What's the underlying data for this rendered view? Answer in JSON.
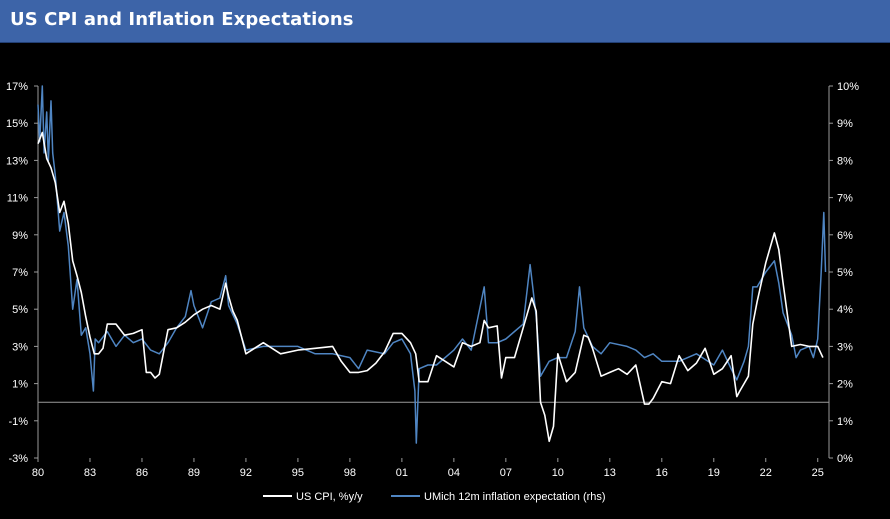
{
  "title": "US CPI and Inflation Expectations",
  "colors": {
    "background": "#000000",
    "title_bar": "#3d64a8",
    "cpi": "#ffffff",
    "umich": "#4f85c2"
  },
  "chart_data": {
    "type": "line",
    "title": "US CPI and Inflation Expectations",
    "x_tick_labels": [
      "80",
      "83",
      "86",
      "89",
      "92",
      "95",
      "98",
      "01",
      "04",
      "07",
      "10",
      "13",
      "16",
      "19",
      "22",
      "25"
    ],
    "y_left": {
      "ticks": [
        "17%",
        "15%",
        "13%",
        "11%",
        "9%",
        "7%",
        "5%",
        "3%",
        "1%",
        "-1%",
        "-3%"
      ],
      "lim": [
        -3,
        17
      ]
    },
    "y_right": {
      "ticks": [
        "10%",
        "9%",
        "8%",
        "7%",
        "6%",
        "5%",
        "4%",
        "3%",
        "2%",
        "1%",
        "0%"
      ],
      "lim": [
        0,
        10
      ]
    },
    "legend_position": "bottom",
    "series": [
      {
        "name": "US CPI, %y/y",
        "axis": "left",
        "x": [
          1980.0,
          1980.25,
          1980.5,
          1980.75,
          1981.0,
          1981.25,
          1981.5,
          1981.75,
          1982.0,
          1982.25,
          1982.5,
          1982.75,
          1983.0,
          1983.25,
          1983.5,
          1983.75,
          1984.0,
          1984.5,
          1985.0,
          1985.5,
          1986.0,
          1986.25,
          1986.5,
          1986.75,
          1987.0,
          1987.5,
          1988.0,
          1988.5,
          1989.0,
          1989.5,
          1990.0,
          1990.5,
          1990.83,
          1991.0,
          1991.25,
          1991.5,
          1992.0,
          1993.0,
          1994.0,
          1995.0,
          1996.0,
          1997.0,
          1997.5,
          1998.0,
          1998.5,
          1999.0,
          1999.5,
          2000.0,
          2000.5,
          2001.0,
          2001.5,
          2001.8,
          2002.0,
          2002.5,
          2003.0,
          2003.5,
          2004.0,
          2004.5,
          2005.0,
          2005.5,
          2005.75,
          2006.0,
          2006.5,
          2006.75,
          2007.0,
          2007.5,
          2008.0,
          2008.5,
          2008.75,
          2009.0,
          2009.25,
          2009.5,
          2009.75,
          2010.0,
          2010.5,
          2011.0,
          2011.5,
          2011.75,
          2012.0,
          2012.5,
          2013.0,
          2013.5,
          2014.0,
          2014.5,
          2015.0,
          2015.25,
          2015.5,
          2016.0,
          2016.5,
          2017.0,
          2017.5,
          2018.0,
          2018.5,
          2019.0,
          2019.5,
          2020.0,
          2020.33,
          2020.5,
          2021.0,
          2021.25,
          2021.5,
          2022.0,
          2022.5,
          2022.75,
          2023.0,
          2023.5,
          2024.0,
          2024.5,
          2025.0,
          2025.3
        ],
        "values": [
          13.9,
          14.5,
          13.1,
          12.6,
          11.8,
          10.2,
          10.8,
          9.6,
          7.6,
          6.8,
          5.9,
          4.6,
          3.5,
          2.6,
          2.6,
          2.9,
          4.2,
          4.2,
          3.6,
          3.7,
          3.9,
          1.6,
          1.6,
          1.3,
          1.5,
          3.9,
          4.0,
          4.3,
          4.7,
          5.0,
          5.2,
          5.0,
          6.4,
          5.7,
          4.9,
          4.4,
          2.6,
          3.2,
          2.6,
          2.8,
          2.9,
          3.0,
          2.2,
          1.6,
          1.6,
          1.7,
          2.1,
          2.7,
          3.7,
          3.7,
          3.2,
          2.6,
          1.1,
          1.1,
          2.5,
          2.2,
          1.9,
          3.2,
          3.0,
          3.2,
          4.4,
          4.0,
          4.1,
          1.3,
          2.4,
          2.4,
          4.0,
          5.6,
          4.9,
          0.0,
          -0.7,
          -2.1,
          -1.3,
          2.6,
          1.1,
          1.6,
          3.6,
          3.5,
          2.9,
          1.4,
          1.6,
          1.8,
          1.5,
          2.0,
          -0.1,
          -0.1,
          0.2,
          1.1,
          1.0,
          2.5,
          1.7,
          2.1,
          2.9,
          1.5,
          1.8,
          2.5,
          0.3,
          0.6,
          1.4,
          4.2,
          5.4,
          7.5,
          9.1,
          8.2,
          6.4,
          3.0,
          3.1,
          3.0,
          3.0,
          2.4
        ]
      },
      {
        "name": "UMich 12m inflation expectation (rhs)",
        "axis": "right",
        "x": [
          1980.0,
          1980.1,
          1980.25,
          1980.35,
          1980.5,
          1980.6,
          1980.75,
          1980.85,
          1981.0,
          1981.25,
          1981.5,
          1981.75,
          1982.0,
          1982.25,
          1982.5,
          1982.75,
          1983.0,
          1983.2,
          1983.3,
          1983.5,
          1984.0,
          1984.5,
          1985.0,
          1985.5,
          1986.0,
          1986.5,
          1987.0,
          1987.5,
          1988.0,
          1988.5,
          1988.83,
          1989.0,
          1989.5,
          1990.0,
          1990.5,
          1990.83,
          1991.0,
          1991.5,
          1992.0,
          1993.0,
          1994.0,
          1995.0,
          1996.0,
          1997.0,
          1998.0,
          1998.5,
          1999.0,
          2000.0,
          2000.5,
          2001.0,
          2001.5,
          2001.75,
          2001.83,
          2002.0,
          2002.5,
          2003.0,
          2004.0,
          2004.5,
          2005.0,
          2005.75,
          2006.0,
          2006.5,
          2007.0,
          2007.5,
          2008.0,
          2008.4,
          2008.75,
          2009.0,
          2009.5,
          2010.0,
          2010.5,
          2011.0,
          2011.25,
          2011.5,
          2012.0,
          2012.5,
          2013.0,
          2014.0,
          2014.5,
          2015.0,
          2015.5,
          2016.0,
          2017.0,
          2018.0,
          2019.0,
          2019.5,
          2020.0,
          2020.33,
          2020.75,
          2021.0,
          2021.25,
          2021.5,
          2022.0,
          2022.5,
          2022.75,
          2023.0,
          2023.5,
          2023.75,
          2024.0,
          2024.5,
          2024.75,
          2025.0,
          2025.2,
          2025.35,
          2025.45
        ],
        "values": [
          9.5,
          8.5,
          10.0,
          8.2,
          9.3,
          8.0,
          9.6,
          8.2,
          7.6,
          6.1,
          6.6,
          5.7,
          4.0,
          4.8,
          3.3,
          3.5,
          2.8,
          1.8,
          3.2,
          3.1,
          3.4,
          3.0,
          3.3,
          3.1,
          3.2,
          2.9,
          2.8,
          3.1,
          3.5,
          3.8,
          4.5,
          4.1,
          3.5,
          4.2,
          4.3,
          4.9,
          4.1,
          3.6,
          2.9,
          3.0,
          3.0,
          3.0,
          2.8,
          2.8,
          2.7,
          2.4,
          2.9,
          2.8,
          3.1,
          3.2,
          2.8,
          1.8,
          0.4,
          2.4,
          2.5,
          2.5,
          2.9,
          3.2,
          2.9,
          4.6,
          3.1,
          3.1,
          3.2,
          3.4,
          3.6,
          5.2,
          3.8,
          2.2,
          2.6,
          2.7,
          2.7,
          3.4,
          4.6,
          3.5,
          3.0,
          2.8,
          3.1,
          3.0,
          2.9,
          2.7,
          2.8,
          2.6,
          2.6,
          2.8,
          2.5,
          2.9,
          2.4,
          2.1,
          2.6,
          3.0,
          4.6,
          4.6,
          5.0,
          5.3,
          4.7,
          3.9,
          3.3,
          2.7,
          2.9,
          3.0,
          2.7,
          3.2,
          5.0,
          6.6,
          5.0
        ]
      }
    ]
  }
}
